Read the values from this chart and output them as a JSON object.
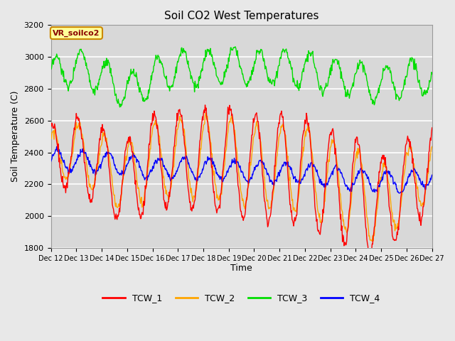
{
  "title": "Soil CO2 West Temperatures",
  "xlabel": "Time",
  "ylabel": "Soil Temperature (C)",
  "ylim": [
    1800,
    3200
  ],
  "yticks": [
    1800,
    2000,
    2200,
    2400,
    2600,
    2800,
    3000,
    3200
  ],
  "x_labels": [
    "Dec 12",
    "Dec 13",
    "Dec 14",
    "Dec 15",
    "Dec 16",
    "Dec 17",
    "Dec 18",
    "Dec 19",
    "Dec 20",
    "Dec 21",
    "Dec 22",
    "Dec 23",
    "Dec 24",
    "Dec 25",
    "Dec 26",
    "Dec 27"
  ],
  "colors": {
    "TCW_1": "#ff0000",
    "TCW_2": "#ffa500",
    "TCW_3": "#00dd00",
    "TCW_4": "#0000ff"
  },
  "annotation_text": "VR_soilco2",
  "annotation_bg": "#ffff99",
  "annotation_border": "#cc8800",
  "annotation_text_color": "#880000",
  "fig_bg": "#e8e8e8",
  "plot_bg": "#d8d8d8",
  "grid_color": "#ffffff",
  "n_points": 720
}
